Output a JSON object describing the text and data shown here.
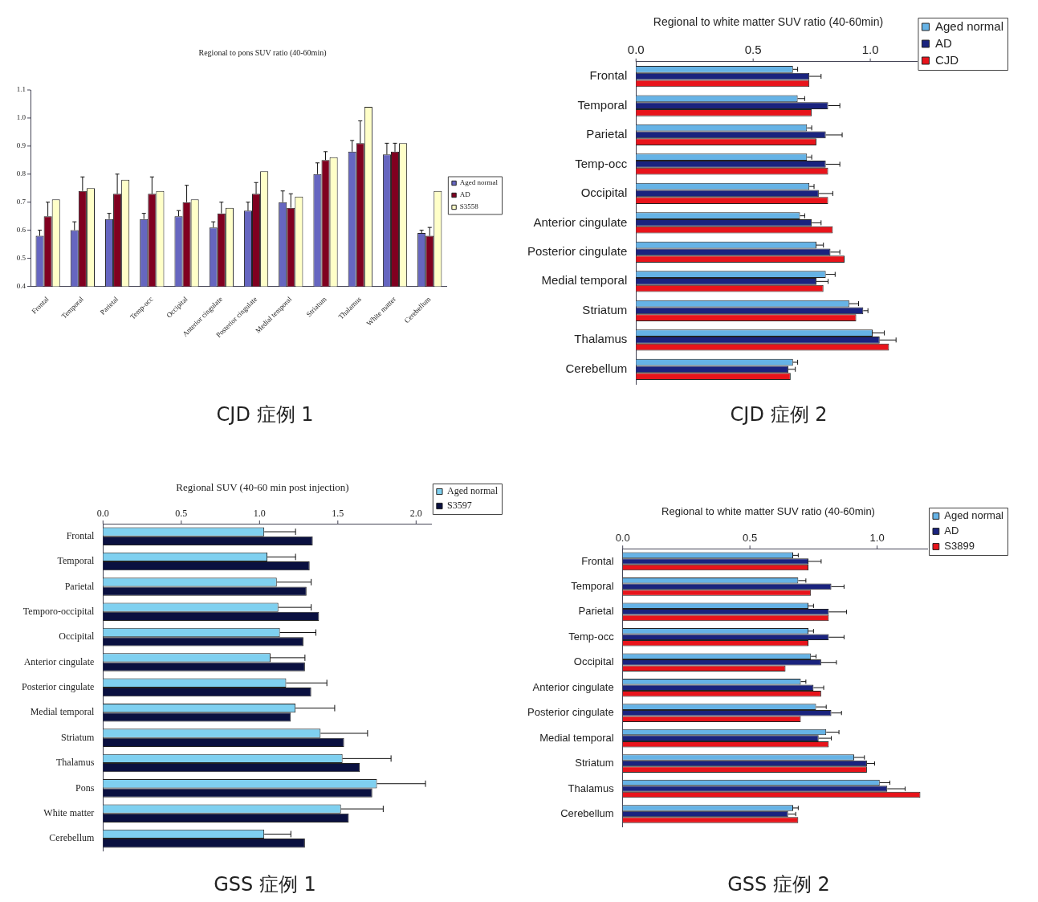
{
  "chart_data": [
    {
      "type": "bar",
      "title": "Regional to pons SUV ratio (40-60min)",
      "categories": [
        "Frontal",
        "Temporal",
        "Parietal",
        "Temp-occ",
        "Occipital",
        "Anterior cingulate",
        "Posterior cingulate",
        "Medial temporal",
        "Striatum",
        "Thalamus",
        "White matter",
        "Cerebellum"
      ],
      "ylim": [
        0.4,
        1.1
      ],
      "yticks": [
        0.4,
        0.5,
        0.6,
        0.7,
        0.8,
        0.9,
        {
          "value": 1,
          "label": "1.0"
        },
        1.1
      ],
      "legend": "right",
      "annotations": [
        "CJD 症例 1"
      ],
      "series": [
        {
          "name": "Aged normal",
          "color": "#6666c0",
          "values": [
            0.58,
            0.6,
            0.64,
            0.64,
            0.65,
            0.61,
            0.67,
            0.7,
            0.8,
            0.88,
            0.87,
            0.59
          ],
          "errors": [
            [
              0.58,
              0.6
            ],
            [
              0.6,
              0.63
            ],
            [
              0.64,
              0.66
            ],
            [
              0.64,
              0.66
            ],
            [
              0.65,
              0.67
            ],
            [
              0.61,
              0.63
            ],
            [
              0.67,
              0.7
            ],
            [
              0.7,
              0.74
            ],
            [
              0.8,
              0.84
            ],
            [
              0.88,
              0.92
            ],
            [
              0.87,
              0.91
            ],
            [
              0.59,
              0.6
            ]
          ]
        },
        {
          "name": "AD",
          "color": "#800020",
          "values": [
            0.65,
            0.74,
            0.73,
            0.73,
            0.7,
            0.66,
            0.73,
            0.68,
            0.85,
            0.91,
            0.88,
            0.58
          ],
          "errors": [
            [
              0.65,
              0.7
            ],
            [
              0.74,
              0.79
            ],
            [
              0.73,
              0.8
            ],
            [
              0.73,
              0.79
            ],
            [
              0.7,
              0.76
            ],
            [
              0.66,
              0.7
            ],
            [
              0.73,
              0.77
            ],
            [
              0.68,
              0.73
            ],
            [
              0.85,
              0.88
            ],
            [
              0.91,
              0.99
            ],
            [
              0.88,
              0.91
            ],
            [
              0.58,
              0.61
            ]
          ]
        },
        {
          "name": "S3558",
          "color": "#ffffc8",
          "values": [
            0.71,
            0.75,
            0.78,
            0.74,
            0.71,
            0.68,
            0.81,
            0.72,
            0.86,
            1.04,
            0.91,
            0.74
          ]
        }
      ]
    },
    {
      "type": "bar",
      "orientation": "horizontal",
      "title": "Regional to white matter SUV ratio (40-60min)",
      "categories": [
        "Frontal",
        "Temporal",
        "Parietal",
        "Temp-occ",
        "Occipital",
        "Anterior cingulate",
        "Posterior cingulate",
        "Medial temporal",
        "Striatum",
        "Thalamus",
        "Cerebellum"
      ],
      "xlim": [
        0,
        1.2
      ],
      "xticks": [
        {
          "value": 0,
          "label": "0.0"
        },
        {
          "value": 0.5,
          "label": "0.5"
        },
        {
          "value": 1,
          "label": "1.0"
        }
      ],
      "legend": "top right",
      "annotations": [
        "CJD 症例 2"
      ],
      "series": [
        {
          "name": "Aged normal",
          "color": "#66b3e6",
          "values": [
            0.67,
            0.69,
            0.73,
            0.73,
            0.74,
            0.7,
            0.77,
            0.81,
            0.91,
            1.01,
            0.67
          ],
          "errors": [
            [
              0.67,
              0.69
            ],
            [
              0.69,
              0.72
            ],
            [
              0.73,
              0.75
            ],
            [
              0.73,
              0.75
            ],
            [
              0.74,
              0.76
            ],
            [
              0.7,
              0.72
            ],
            [
              0.77,
              0.8
            ],
            [
              0.81,
              0.85
            ],
            [
              0.91,
              0.95
            ],
            [
              1.01,
              1.06
            ],
            [
              0.67,
              0.69
            ]
          ]
        },
        {
          "name": "AD",
          "color": "#1a237e",
          "values": [
            0.74,
            0.82,
            0.81,
            0.81,
            0.78,
            0.75,
            0.83,
            0.77,
            0.97,
            1.04,
            0.65
          ],
          "errors": [
            [
              0.74,
              0.79
            ],
            [
              0.82,
              0.87
            ],
            [
              0.81,
              0.88
            ],
            [
              0.81,
              0.87
            ],
            [
              0.78,
              0.84
            ],
            [
              0.75,
              0.79
            ],
            [
              0.83,
              0.87
            ],
            [
              0.77,
              0.82
            ],
            [
              0.97,
              0.99
            ],
            [
              1.04,
              1.11
            ],
            [
              0.65,
              0.68
            ]
          ]
        },
        {
          "name": "CJD",
          "color": "#e8141b",
          "values": [
            0.74,
            0.75,
            0.77,
            0.82,
            0.82,
            0.84,
            0.89,
            0.8,
            0.94,
            1.08,
            0.66
          ]
        }
      ]
    },
    {
      "type": "bar",
      "orientation": "horizontal",
      "title": "Regional SUV (40-60 min post injection)",
      "categories": [
        "Frontal",
        "Temporal",
        "Parietal",
        "Temporo-occipital",
        "Occipital",
        "Anterior cingulate",
        "Posterior cingulate",
        "Medial temporal",
        "Striatum",
        "Thalamus",
        "Pons",
        "White matter",
        "Cerebellum"
      ],
      "xlim": [
        0,
        2.1
      ],
      "xticks": [
        {
          "value": 0,
          "label": "0.0"
        },
        {
          "value": 0.5,
          "label": "0.5"
        },
        {
          "value": 1,
          "label": "1.0"
        },
        {
          "value": 1.5,
          "label": "1.5"
        },
        {
          "value": 2,
          "label": "2.0"
        }
      ],
      "legend": "top right",
      "annotations": [
        "GSS 症例 1"
      ],
      "series": [
        {
          "name": "Aged normal",
          "color": "#7fd0f0",
          "values": [
            1.03,
            1.05,
            1.11,
            1.12,
            1.13,
            1.07,
            1.17,
            1.23,
            1.39,
            1.53,
            1.75,
            1.52,
            1.03
          ],
          "errors": [
            [
              1.03,
              1.23
            ],
            [
              1.05,
              1.23
            ],
            [
              1.11,
              1.33
            ],
            [
              1.12,
              1.33
            ],
            [
              1.13,
              1.36
            ],
            [
              1.07,
              1.29
            ],
            [
              1.17,
              1.43
            ],
            [
              1.23,
              1.48
            ],
            [
              1.39,
              1.69
            ],
            [
              1.53,
              1.84
            ],
            [
              1.75,
              2.06
            ],
            [
              1.52,
              1.79
            ],
            [
              1.03,
              1.2
            ]
          ]
        },
        {
          "name": "S3597",
          "color": "#0a1040",
          "values": [
            1.34,
            1.32,
            1.3,
            1.38,
            1.28,
            1.29,
            1.33,
            1.2,
            1.54,
            1.64,
            1.72,
            1.57,
            1.29
          ]
        }
      ]
    },
    {
      "type": "bar",
      "orientation": "horizontal",
      "title": "Regional to white matter SUV ratio (40-60min)",
      "categories": [
        "Frontal",
        "Temporal",
        "Parietal",
        "Temp-occ",
        "Occipital",
        "Anterior cingulate",
        "Posterior cingulate",
        "Medial temporal",
        "Striatum",
        "Thalamus",
        "Cerebellum"
      ],
      "xlim": [
        0,
        1.2
      ],
      "xticks": [
        {
          "value": 0,
          "label": "0.0"
        },
        {
          "value": 0.5,
          "label": "0.5"
        },
        {
          "value": 1,
          "label": "1.0"
        }
      ],
      "legend": "top right",
      "annotations": [
        "GSS 症例 2"
      ],
      "series": [
        {
          "name": "Aged normal",
          "color": "#66b3e6",
          "values": [
            0.67,
            0.69,
            0.73,
            0.73,
            0.74,
            0.7,
            0.76,
            0.8,
            0.91,
            1.01,
            0.67
          ],
          "errors": [
            [
              0.67,
              0.69
            ],
            [
              0.69,
              0.72
            ],
            [
              0.73,
              0.75
            ],
            [
              0.73,
              0.75
            ],
            [
              0.74,
              0.76
            ],
            [
              0.7,
              0.72
            ],
            [
              0.76,
              0.8
            ],
            [
              0.8,
              0.85
            ],
            [
              0.91,
              0.95
            ],
            [
              1.01,
              1.05
            ],
            [
              0.67,
              0.69
            ]
          ]
        },
        {
          "name": "AD",
          "color": "#1a237e",
          "values": [
            0.73,
            0.82,
            0.81,
            0.81,
            0.78,
            0.75,
            0.82,
            0.77,
            0.96,
            1.04,
            0.65
          ],
          "errors": [
            [
              0.73,
              0.78
            ],
            [
              0.82,
              0.87
            ],
            [
              0.81,
              0.88
            ],
            [
              0.81,
              0.87
            ],
            [
              0.78,
              0.84
            ],
            [
              0.75,
              0.79
            ],
            [
              0.82,
              0.86
            ],
            [
              0.77,
              0.82
            ],
            [
              0.96,
              0.99
            ],
            [
              1.04,
              1.11
            ],
            [
              0.65,
              0.68
            ]
          ]
        },
        {
          "name": "S3899",
          "color": "#e8141b",
          "values": [
            0.73,
            0.74,
            0.81,
            0.73,
            0.64,
            0.78,
            0.7,
            0.81,
            0.96,
            1.17,
            0.69
          ]
        }
      ]
    }
  ]
}
